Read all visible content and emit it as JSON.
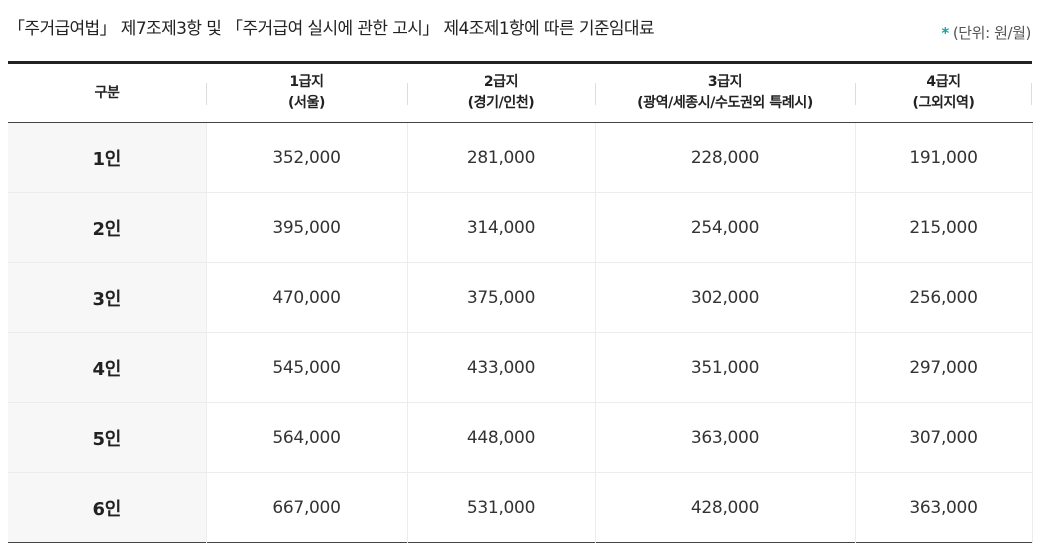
{
  "caption": "「주거급여법」 제7조제3항 및 「주거급여 실시에 관한 고시」 제4조제1항에 따른 기준임대료",
  "unit": {
    "marker": "*",
    "text": "(단위: 원/월)"
  },
  "table": {
    "headers": [
      {
        "line1": "구분",
        "line2": ""
      },
      {
        "line1": "1급지",
        "line2": "(서울)"
      },
      {
        "line1": "2급지",
        "line2": "(경기/인천)"
      },
      {
        "line1": "3급지",
        "line2": "(광역/세종시/수도권외 특례시)"
      },
      {
        "line1": "4급지",
        "line2": "(그외지역)"
      }
    ],
    "rows": [
      {
        "label": "1인",
        "values": [
          "352,000",
          "281,000",
          "228,000",
          "191,000"
        ]
      },
      {
        "label": "2인",
        "values": [
          "395,000",
          "314,000",
          "254,000",
          "215,000"
        ]
      },
      {
        "label": "3인",
        "values": [
          "470,000",
          "375,000",
          "302,000",
          "256,000"
        ]
      },
      {
        "label": "4인",
        "values": [
          "545,000",
          "433,000",
          "351,000",
          "297,000"
        ]
      },
      {
        "label": "5인",
        "values": [
          "564,000",
          "448,000",
          "363,000",
          "307,000"
        ]
      },
      {
        "label": "6인",
        "values": [
          "667,000",
          "531,000",
          "428,000",
          "363,000"
        ]
      }
    ]
  }
}
